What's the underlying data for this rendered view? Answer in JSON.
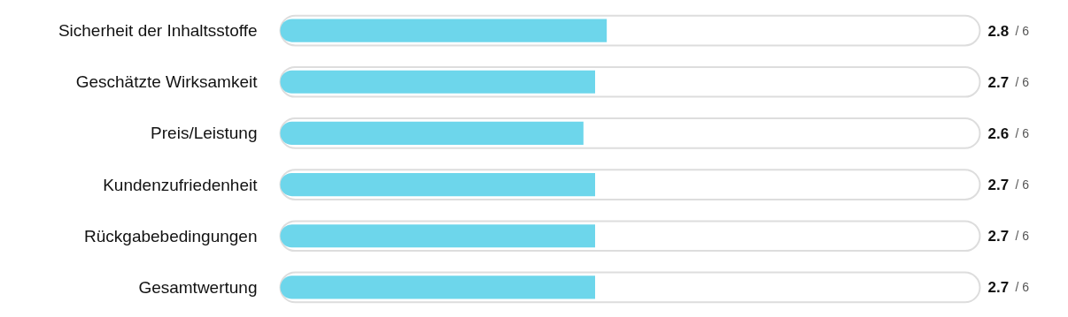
{
  "chart_data": {
    "type": "bar",
    "orientation": "horizontal",
    "categories": [
      "Sicherheit der Inhaltsstoffe",
      "Geschätzte Wirksamkeit",
      "Preis/Leistung",
      "Kundenzufriedenheit",
      "Rückgabebedingungen",
      "Gesamtwertung"
    ],
    "values": [
      2.8,
      2.7,
      2.6,
      2.7,
      2.7,
      2.7
    ],
    "data_labels": true,
    "annotations": [
      "/ 6",
      "/ 6",
      "/ 6",
      "/ 6",
      "/ 6",
      "/ 6"
    ],
    "color": "#6dd6eb",
    "xlim": [
      0,
      6
    ],
    "tick_labels": "y"
  }
}
